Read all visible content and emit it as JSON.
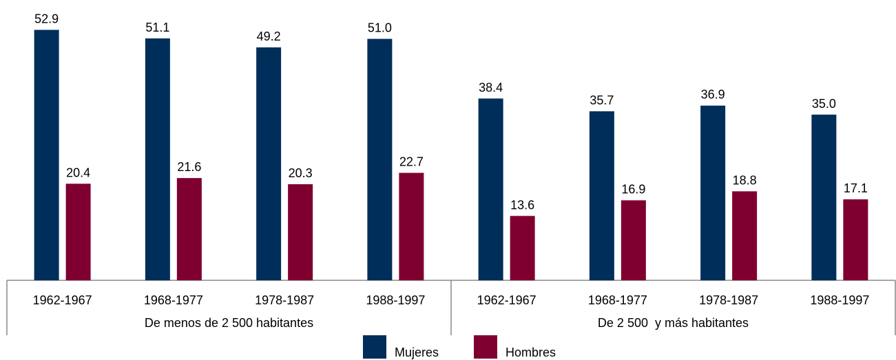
{
  "chart_data": {
    "type": "bar",
    "categories": [
      "1962-1967",
      "1968-1977",
      "1978-1987",
      "1988-1997",
      "1962-1967",
      "1968-1977",
      "1978-1987",
      "1988-1997"
    ],
    "groups": [
      "De menos de 2 500 habitantes",
      "De 2 500  y más habitantes"
    ],
    "series": [
      {
        "name": "Mujeres",
        "color": "#002e5a",
        "values": [
          52.9,
          51.1,
          49.2,
          51.0,
          38.4,
          35.7,
          36.9,
          35.0
        ],
        "value_labels": [
          "52.9",
          "51.1",
          "49.2",
          "51.0",
          "38.4",
          "35.7",
          "36.9",
          "35.0"
        ]
      },
      {
        "name": "Hombres",
        "color": "#7f0030",
        "values": [
          20.4,
          21.6,
          20.3,
          22.7,
          13.6,
          16.9,
          18.8,
          17.1
        ],
        "value_labels": [
          "20.4",
          "21.6",
          "20.3",
          "22.7",
          "13.6",
          "16.9",
          "18.8",
          "17.1"
        ]
      }
    ],
    "ylim": [
      0,
      55
    ]
  }
}
